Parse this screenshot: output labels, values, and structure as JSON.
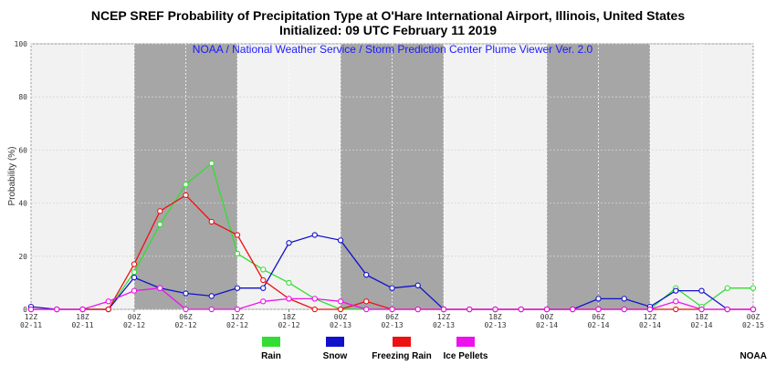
{
  "chart_data": {
    "type": "line",
    "title": "NCEP SREF Probability of Precipitation Type at O'Hare International Airport, Illinois, United States",
    "subtitle": "Initialized: 09 UTC February 11 2019",
    "inner_title": "NOAA / National Weather Service / Storm Prediction Center Plume Viewer Ver. 2.0",
    "ylabel": "Probability (%)",
    "ylim": [
      0,
      100
    ],
    "yticks": [
      "0",
      "20",
      "40",
      "60",
      "80",
      "100"
    ],
    "x_step_hours": 3,
    "x_count": 29,
    "x_tick_labels": [
      {
        "hour": "12Z",
        "date": "02-11"
      },
      {
        "hour": "18Z",
        "date": "02-11"
      },
      {
        "hour": "00Z",
        "date": "02-12"
      },
      {
        "hour": "06Z",
        "date": "02-12"
      },
      {
        "hour": "12Z",
        "date": "02-12"
      },
      {
        "hour": "18Z",
        "date": "02-12"
      },
      {
        "hour": "00Z",
        "date": "02-13"
      },
      {
        "hour": "06Z",
        "date": "02-13"
      },
      {
        "hour": "12Z",
        "date": "02-13"
      },
      {
        "hour": "18Z",
        "date": "02-13"
      },
      {
        "hour": "00Z",
        "date": "02-14"
      },
      {
        "hour": "06Z",
        "date": "02-14"
      },
      {
        "hour": "12Z",
        "date": "02-14"
      },
      {
        "hour": "18Z",
        "date": "02-14"
      },
      {
        "hour": "00Z",
        "date": "02-15"
      }
    ],
    "night_bands": [
      [
        4,
        8
      ],
      [
        12,
        16
      ],
      [
        20,
        24
      ]
    ],
    "series": [
      {
        "name": "Rain",
        "color": "#33dd33",
        "values": [
          0,
          0,
          0,
          0,
          14,
          32,
          47,
          55,
          21,
          15,
          10,
          4,
          0,
          0,
          0,
          0,
          0,
          0,
          0,
          0,
          0,
          0,
          0,
          0,
          0,
          8,
          1,
          8,
          8
        ]
      },
      {
        "name": "Snow",
        "color": "#1111cc",
        "values": [
          1,
          0,
          0,
          0,
          12,
          8,
          6,
          5,
          8,
          8,
          25,
          28,
          26,
          13,
          8,
          9,
          0,
          0,
          0,
          0,
          0,
          0,
          4,
          4,
          1,
          7,
          7,
          0,
          0
        ]
      },
      {
        "name": "Freezing Rain",
        "color": "#ee1111",
        "values": [
          0,
          0,
          0,
          0,
          17,
          37,
          43,
          33,
          28,
          11,
          4,
          0,
          0,
          3,
          0,
          0,
          0,
          0,
          0,
          0,
          0,
          0,
          0,
          0,
          0,
          0,
          0,
          0,
          0
        ]
      },
      {
        "name": "Ice Pellets",
        "color": "#ee11ee",
        "values": [
          0,
          0,
          0,
          3,
          7,
          8,
          0,
          0,
          0,
          3,
          4,
          4,
          3,
          0,
          0,
          0,
          0,
          0,
          0,
          0,
          0,
          0,
          0,
          0,
          0,
          3,
          0,
          0,
          0
        ]
      }
    ]
  },
  "credit": "NOAA"
}
